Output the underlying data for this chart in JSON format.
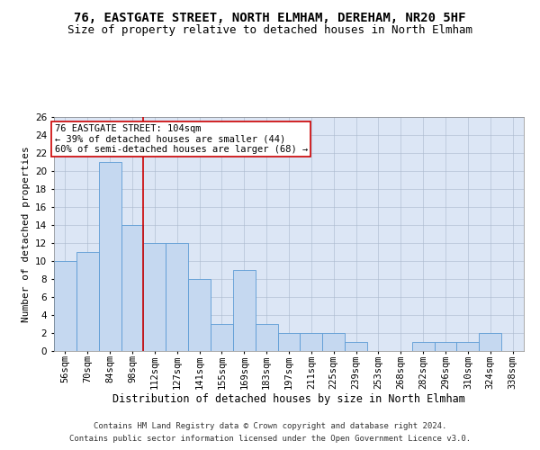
{
  "title": "76, EASTGATE STREET, NORTH ELMHAM, DEREHAM, NR20 5HF",
  "subtitle": "Size of property relative to detached houses in North Elmham",
  "xlabel": "Distribution of detached houses by size in North Elmham",
  "ylabel": "Number of detached properties",
  "categories": [
    "56sqm",
    "70sqm",
    "84sqm",
    "98sqm",
    "112sqm",
    "127sqm",
    "141sqm",
    "155sqm",
    "169sqm",
    "183sqm",
    "197sqm",
    "211sqm",
    "225sqm",
    "239sqm",
    "253sqm",
    "268sqm",
    "282sqm",
    "296sqm",
    "310sqm",
    "324sqm",
    "338sqm"
  ],
  "values": [
    10,
    11,
    21,
    14,
    12,
    12,
    8,
    3,
    9,
    3,
    2,
    2,
    2,
    1,
    0,
    0,
    1,
    1,
    1,
    2,
    0
  ],
  "bar_color": "#c5d8f0",
  "bar_edge_color": "#5b9bd5",
  "vline_x": 3.5,
  "annotation_line1": "76 EASTGATE STREET: 104sqm",
  "annotation_line2": "← 39% of detached houses are smaller (44)",
  "annotation_line3": "60% of semi-detached houses are larger (68) →",
  "annotation_box_color": "#ffffff",
  "annotation_border_color": "#cc0000",
  "vline_color": "#cc0000",
  "ylim": [
    0,
    26
  ],
  "yticks": [
    0,
    2,
    4,
    6,
    8,
    10,
    12,
    14,
    16,
    18,
    20,
    22,
    24,
    26
  ],
  "background_color": "#dce6f5",
  "footer_line1": "Contains HM Land Registry data © Crown copyright and database right 2024.",
  "footer_line2": "Contains public sector information licensed under the Open Government Licence v3.0.",
  "title_fontsize": 10,
  "subtitle_fontsize": 9,
  "xlabel_fontsize": 8.5,
  "ylabel_fontsize": 8,
  "tick_fontsize": 7.5,
  "annotation_fontsize": 7.5,
  "footer_fontsize": 6.5
}
